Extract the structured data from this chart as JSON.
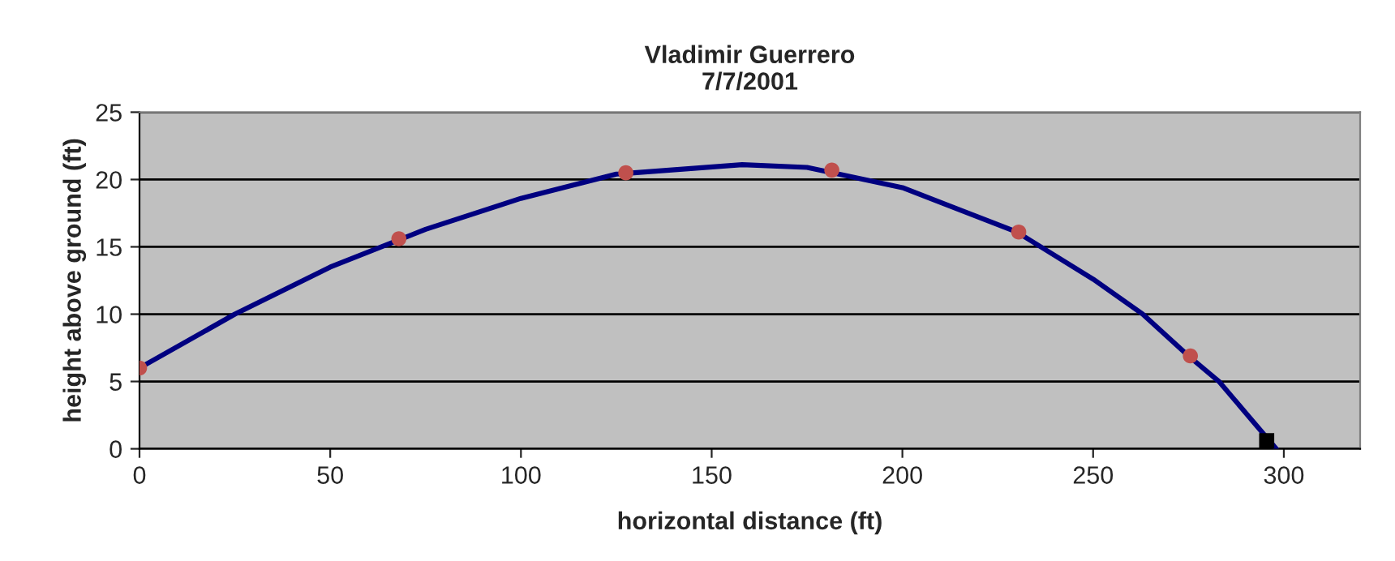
{
  "chart_data": {
    "type": "line",
    "title": "Vladimir Guerrero\n7/7/2001",
    "xlabel": "horizontal distance (ft)",
    "ylabel": "height above ground (ft)",
    "xlim": [
      0,
      320
    ],
    "xticks": [
      0,
      50,
      100,
      150,
      200,
      250,
      300
    ],
    "ylim": [
      0,
      25
    ],
    "yticks": [
      0,
      5,
      10,
      15,
      20,
      25
    ],
    "grid": "y",
    "legend": false,
    "series": [
      {
        "color": "#000080",
        "marker": "none",
        "x": [
          0,
          25,
          50,
          75,
          100,
          125,
          158,
          175,
          200,
          230,
          250,
          263,
          275,
          283,
          298
        ],
        "values": [
          6,
          10,
          13.5,
          16.3,
          18.6,
          20.4,
          21.1,
          20.9,
          19.4,
          16.1,
          12.6,
          10,
          6.9,
          5,
          0
        ]
      },
      {
        "type": "scatter",
        "color": "#c0504d",
        "marker": "circle",
        "x": [
          0,
          68,
          127.5,
          181.5,
          230.5,
          275.5
        ],
        "values": [
          6,
          15.6,
          20.5,
          20.7,
          16.1,
          6.9
        ]
      },
      {
        "type": "scatter",
        "color": "#000000",
        "marker": "square",
        "x": [
          295.5
        ],
        "values": [
          0.6
        ]
      }
    ]
  }
}
